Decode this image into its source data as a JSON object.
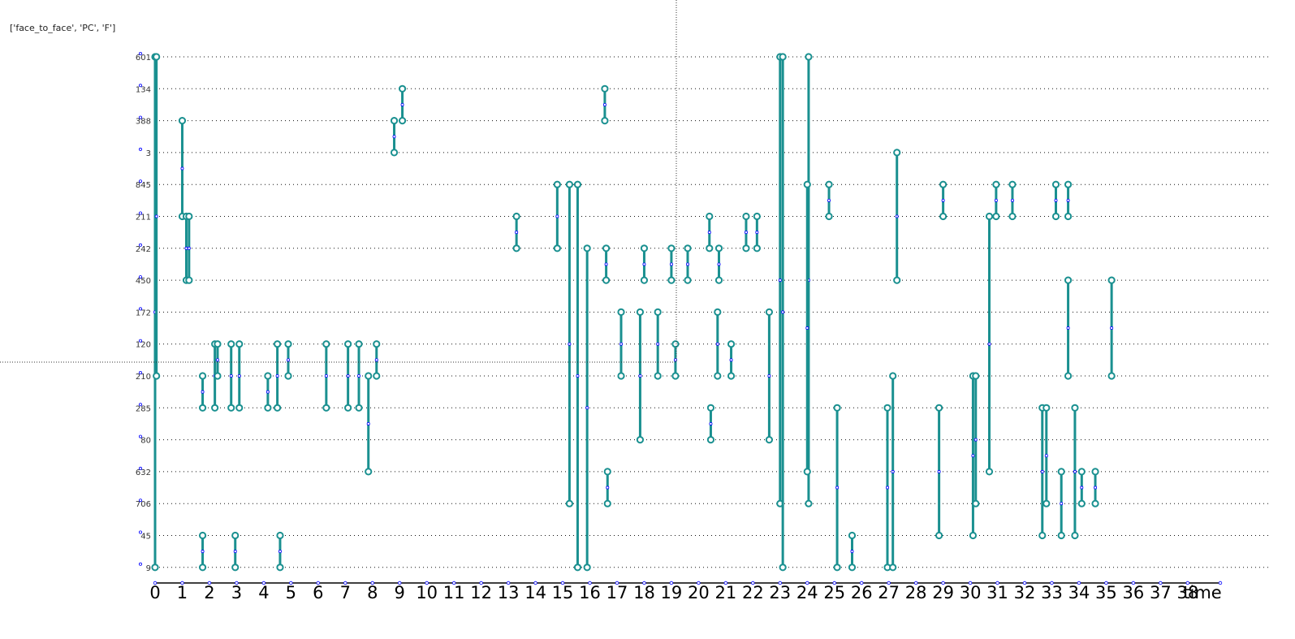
{
  "header": {
    "title": "['face_to_face', 'PC', 'F']"
  },
  "chart_data": {
    "type": "timeline",
    "title": "['face_to_face', 'PC', 'F']",
    "xlabel": "time",
    "xlim": [
      0,
      39.2
    ],
    "x_ticks": [
      0,
      1,
      2,
      3,
      4,
      5,
      6,
      7,
      8,
      9,
      10,
      11,
      12,
      13,
      14,
      15,
      16,
      17,
      18,
      19,
      20,
      21,
      22,
      23,
      24,
      25,
      26,
      27,
      28,
      29,
      30,
      31,
      32,
      33,
      34,
      35,
      36,
      37,
      38
    ],
    "nodes": [
      "601",
      "134",
      "388",
      "3",
      "845",
      "211",
      "242",
      "450",
      "172",
      "120",
      "210",
      "285",
      "80",
      "632",
      "706",
      "45",
      "9"
    ],
    "grid": "dotted-horizontal",
    "colors": {
      "edge": "#1a9090",
      "ring": "#1a9090",
      "dot": "#0000ff",
      "grid": "#111111"
    },
    "interactions": [
      {
        "t": 0.0,
        "from": "601",
        "to": "9"
      },
      {
        "t": 0.05,
        "from": "601",
        "to": "210"
      },
      {
        "t": 1.0,
        "from": "388",
        "to": "211"
      },
      {
        "t": 1.15,
        "from": "211",
        "to": "450"
      },
      {
        "t": 1.25,
        "from": "211",
        "to": "450"
      },
      {
        "t": 1.75,
        "from": "210",
        "to": "285"
      },
      {
        "t": 2.2,
        "from": "120",
        "to": "285"
      },
      {
        "t": 2.3,
        "from": "120",
        "to": "210"
      },
      {
        "t": 2.8,
        "from": "120",
        "to": "285"
      },
      {
        "t": 3.1,
        "from": "120",
        "to": "285"
      },
      {
        "t": 2.95,
        "from": "45",
        "to": "9"
      },
      {
        "t": 4.6,
        "from": "45",
        "to": "9"
      },
      {
        "t": 1.75,
        "from": "45",
        "to": "9"
      },
      {
        "t": 4.15,
        "from": "210",
        "to": "285"
      },
      {
        "t": 4.5,
        "from": "120",
        "to": "285"
      },
      {
        "t": 4.9,
        "from": "120",
        "to": "210"
      },
      {
        "t": 6.3,
        "from": "120",
        "to": "285"
      },
      {
        "t": 7.1,
        "from": "120",
        "to": "285"
      },
      {
        "t": 7.5,
        "from": "120",
        "to": "285"
      },
      {
        "t": 7.85,
        "from": "210",
        "to": "632"
      },
      {
        "t": 8.15,
        "from": "120",
        "to": "210"
      },
      {
        "t": 8.8,
        "from": "388",
        "to": "3"
      },
      {
        "t": 9.1,
        "from": "134",
        "to": "388"
      },
      {
        "t": 13.3,
        "from": "211",
        "to": "242"
      },
      {
        "t": 14.8,
        "from": "845",
        "to": "242"
      },
      {
        "t": 15.25,
        "from": "845",
        "to": "706"
      },
      {
        "t": 15.55,
        "from": "845",
        "to": "9"
      },
      {
        "t": 15.9,
        "from": "242",
        "to": "9"
      },
      {
        "t": 16.55,
        "from": "134",
        "to": "388"
      },
      {
        "t": 16.6,
        "from": "242",
        "to": "450"
      },
      {
        "t": 16.65,
        "from": "632",
        "to": "706"
      },
      {
        "t": 17.15,
        "from": "172",
        "to": "210"
      },
      {
        "t": 17.85,
        "from": "172",
        "to": "80"
      },
      {
        "t": 18.0,
        "from": "242",
        "to": "450"
      },
      {
        "t": 18.5,
        "from": "172",
        "to": "210"
      },
      {
        "t": 19.0,
        "from": "242",
        "to": "450"
      },
      {
        "t": 19.15,
        "from": "120",
        "to": "210"
      },
      {
        "t": 19.6,
        "from": "242",
        "to": "450"
      },
      {
        "t": 20.4,
        "from": "211",
        "to": "242"
      },
      {
        "t": 20.45,
        "from": "285",
        "to": "80"
      },
      {
        "t": 20.7,
        "from": "172",
        "to": "210"
      },
      {
        "t": 20.75,
        "from": "242",
        "to": "450"
      },
      {
        "t": 21.2,
        "from": "120",
        "to": "210"
      },
      {
        "t": 21.75,
        "from": "211",
        "to": "242"
      },
      {
        "t": 22.15,
        "from": "211",
        "to": "242"
      },
      {
        "t": 22.6,
        "from": "172",
        "to": "80"
      },
      {
        "t": 23.0,
        "from": "601",
        "to": "706"
      },
      {
        "t": 23.1,
        "from": "601",
        "to": "9"
      },
      {
        "t": 24.05,
        "from": "601",
        "to": "706"
      },
      {
        "t": 24.0,
        "from": "845",
        "to": "632"
      },
      {
        "t": 24.8,
        "from": "845",
        "to": "211"
      },
      {
        "t": 25.1,
        "from": "285",
        "to": "9"
      },
      {
        "t": 25.65,
        "from": "45",
        "to": "9"
      },
      {
        "t": 26.95,
        "from": "285",
        "to": "9"
      },
      {
        "t": 27.15,
        "from": "210",
        "to": "9"
      },
      {
        "t": 27.3,
        "from": "3",
        "to": "450"
      },
      {
        "t": 28.85,
        "from": "285",
        "to": "45"
      },
      {
        "t": 29.0,
        "from": "845",
        "to": "211"
      },
      {
        "t": 30.1,
        "from": "210",
        "to": "45"
      },
      {
        "t": 30.2,
        "from": "210",
        "to": "706"
      },
      {
        "t": 30.7,
        "from": "211",
        "to": "632"
      },
      {
        "t": 30.95,
        "from": "845",
        "to": "211"
      },
      {
        "t": 31.55,
        "from": "845",
        "to": "211"
      },
      {
        "t": 32.65,
        "from": "285",
        "to": "45"
      },
      {
        "t": 32.8,
        "from": "285",
        "to": "706"
      },
      {
        "t": 33.15,
        "from": "845",
        "to": "211"
      },
      {
        "t": 33.35,
        "from": "632",
        "to": "45"
      },
      {
        "t": 33.6,
        "from": "845",
        "to": "211"
      },
      {
        "t": 33.6,
        "from": "450",
        "to": "210"
      },
      {
        "t": 33.85,
        "from": "285",
        "to": "45"
      },
      {
        "t": 34.1,
        "from": "632",
        "to": "706"
      },
      {
        "t": 34.6,
        "from": "632",
        "to": "706"
      },
      {
        "t": 35.2,
        "from": "450",
        "to": "210"
      }
    ]
  }
}
